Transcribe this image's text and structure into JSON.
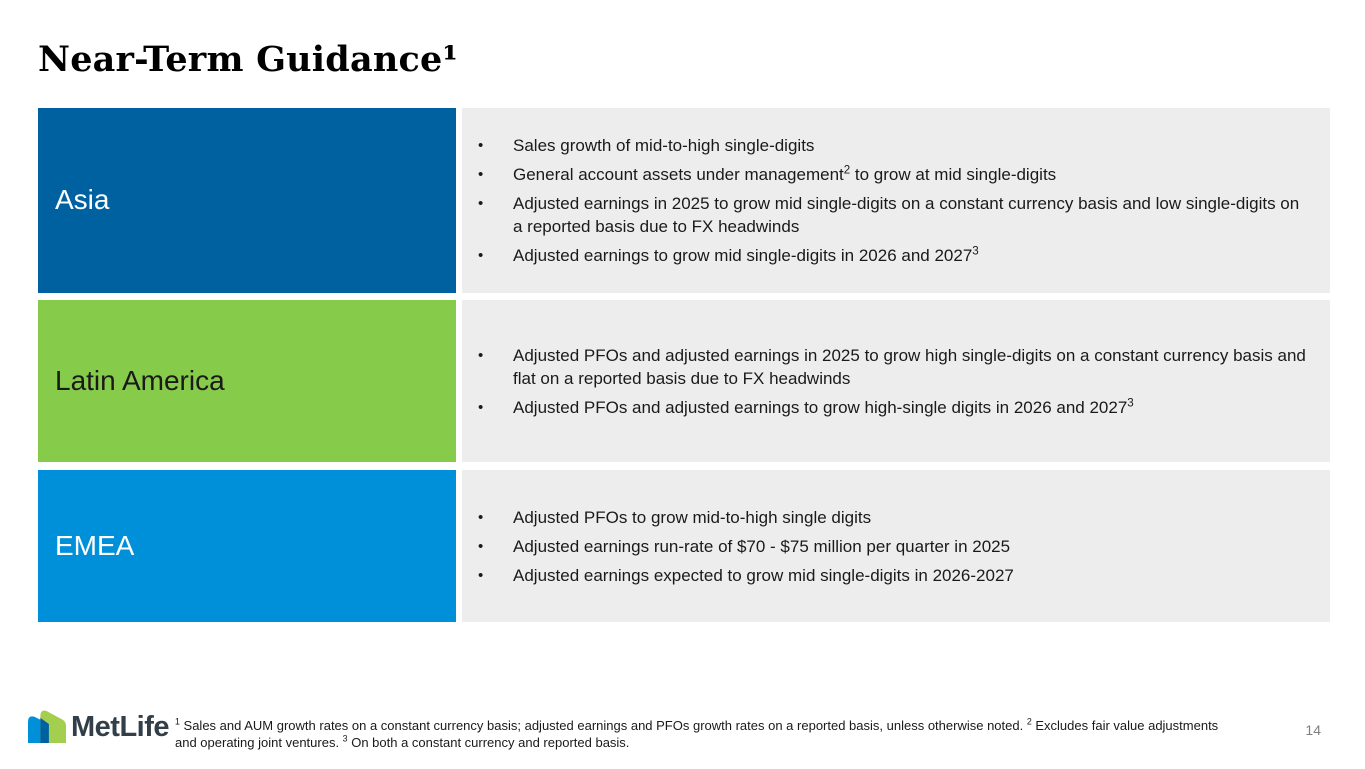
{
  "slide": {
    "title": "Near-Term Guidance¹",
    "page_number": "14"
  },
  "colors": {
    "asia_bg": "#0061A0",
    "latam_bg": "#86CB4A",
    "emea_bg": "#0090DA",
    "content_bg": "#EDEDED",
    "logo_blue": "#0090DA",
    "logo_green": "#A4CE4E",
    "logo_overlap": "#0061A0",
    "wordmark_color": "#333F48"
  },
  "rows": [
    {
      "label": "Asia",
      "label_bg": "#0061A0",
      "label_color": "#FFFFFF",
      "bullets": [
        [
          {
            "t": "Sales growth of mid-to-high single-digits"
          }
        ],
        [
          {
            "t": "General account assets under management"
          },
          {
            "s": "2"
          },
          {
            "t": " to grow at mid single-digits"
          }
        ],
        [
          {
            "t": "Adjusted earnings in 2025 to grow mid single-digits on a constant currency basis and low single-digits on a reported basis due to FX headwinds"
          }
        ],
        [
          {
            "t": "Adjusted earnings to grow mid single-digits in 2026 and 2027"
          },
          {
            "s": "3"
          }
        ]
      ]
    },
    {
      "label": "Latin America",
      "label_bg": "#86CB4A",
      "label_color": "#1A1A1A",
      "bullets": [
        [
          {
            "t": "Adjusted PFOs and adjusted earnings in 2025 to grow high single-digits on a constant currency basis and flat on a reported basis due to FX headwinds"
          }
        ],
        [
          {
            "t": "Adjusted PFOs and adjusted earnings to grow high-single digits in 2026 and 2027"
          },
          {
            "s": "3"
          }
        ]
      ]
    },
    {
      "label": "EMEA",
      "label_bg": "#0090DA",
      "label_color": "#FFFFFF",
      "bullets": [
        [
          {
            "t": "Adjusted PFOs to grow mid-to-high single digits"
          }
        ],
        [
          {
            "t": "Adjusted earnings run-rate of $70 - $75 million per quarter in 2025"
          }
        ],
        [
          {
            "t": "Adjusted earnings expected to grow mid single-digits in 2026-2027"
          }
        ]
      ]
    }
  ],
  "footnote": [
    {
      "s": "1"
    },
    {
      "t": " Sales and AUM growth rates on a constant currency basis; adjusted earnings and PFOs growth rates on a reported basis, unless otherwise noted. "
    },
    {
      "s": "2"
    },
    {
      "t": " Excludes fair value adjustments and operating joint ventures. "
    },
    {
      "s": "3"
    },
    {
      "t": " On both a constant currency and reported basis."
    }
  ],
  "logo": {
    "wordmark": "MetLife"
  }
}
